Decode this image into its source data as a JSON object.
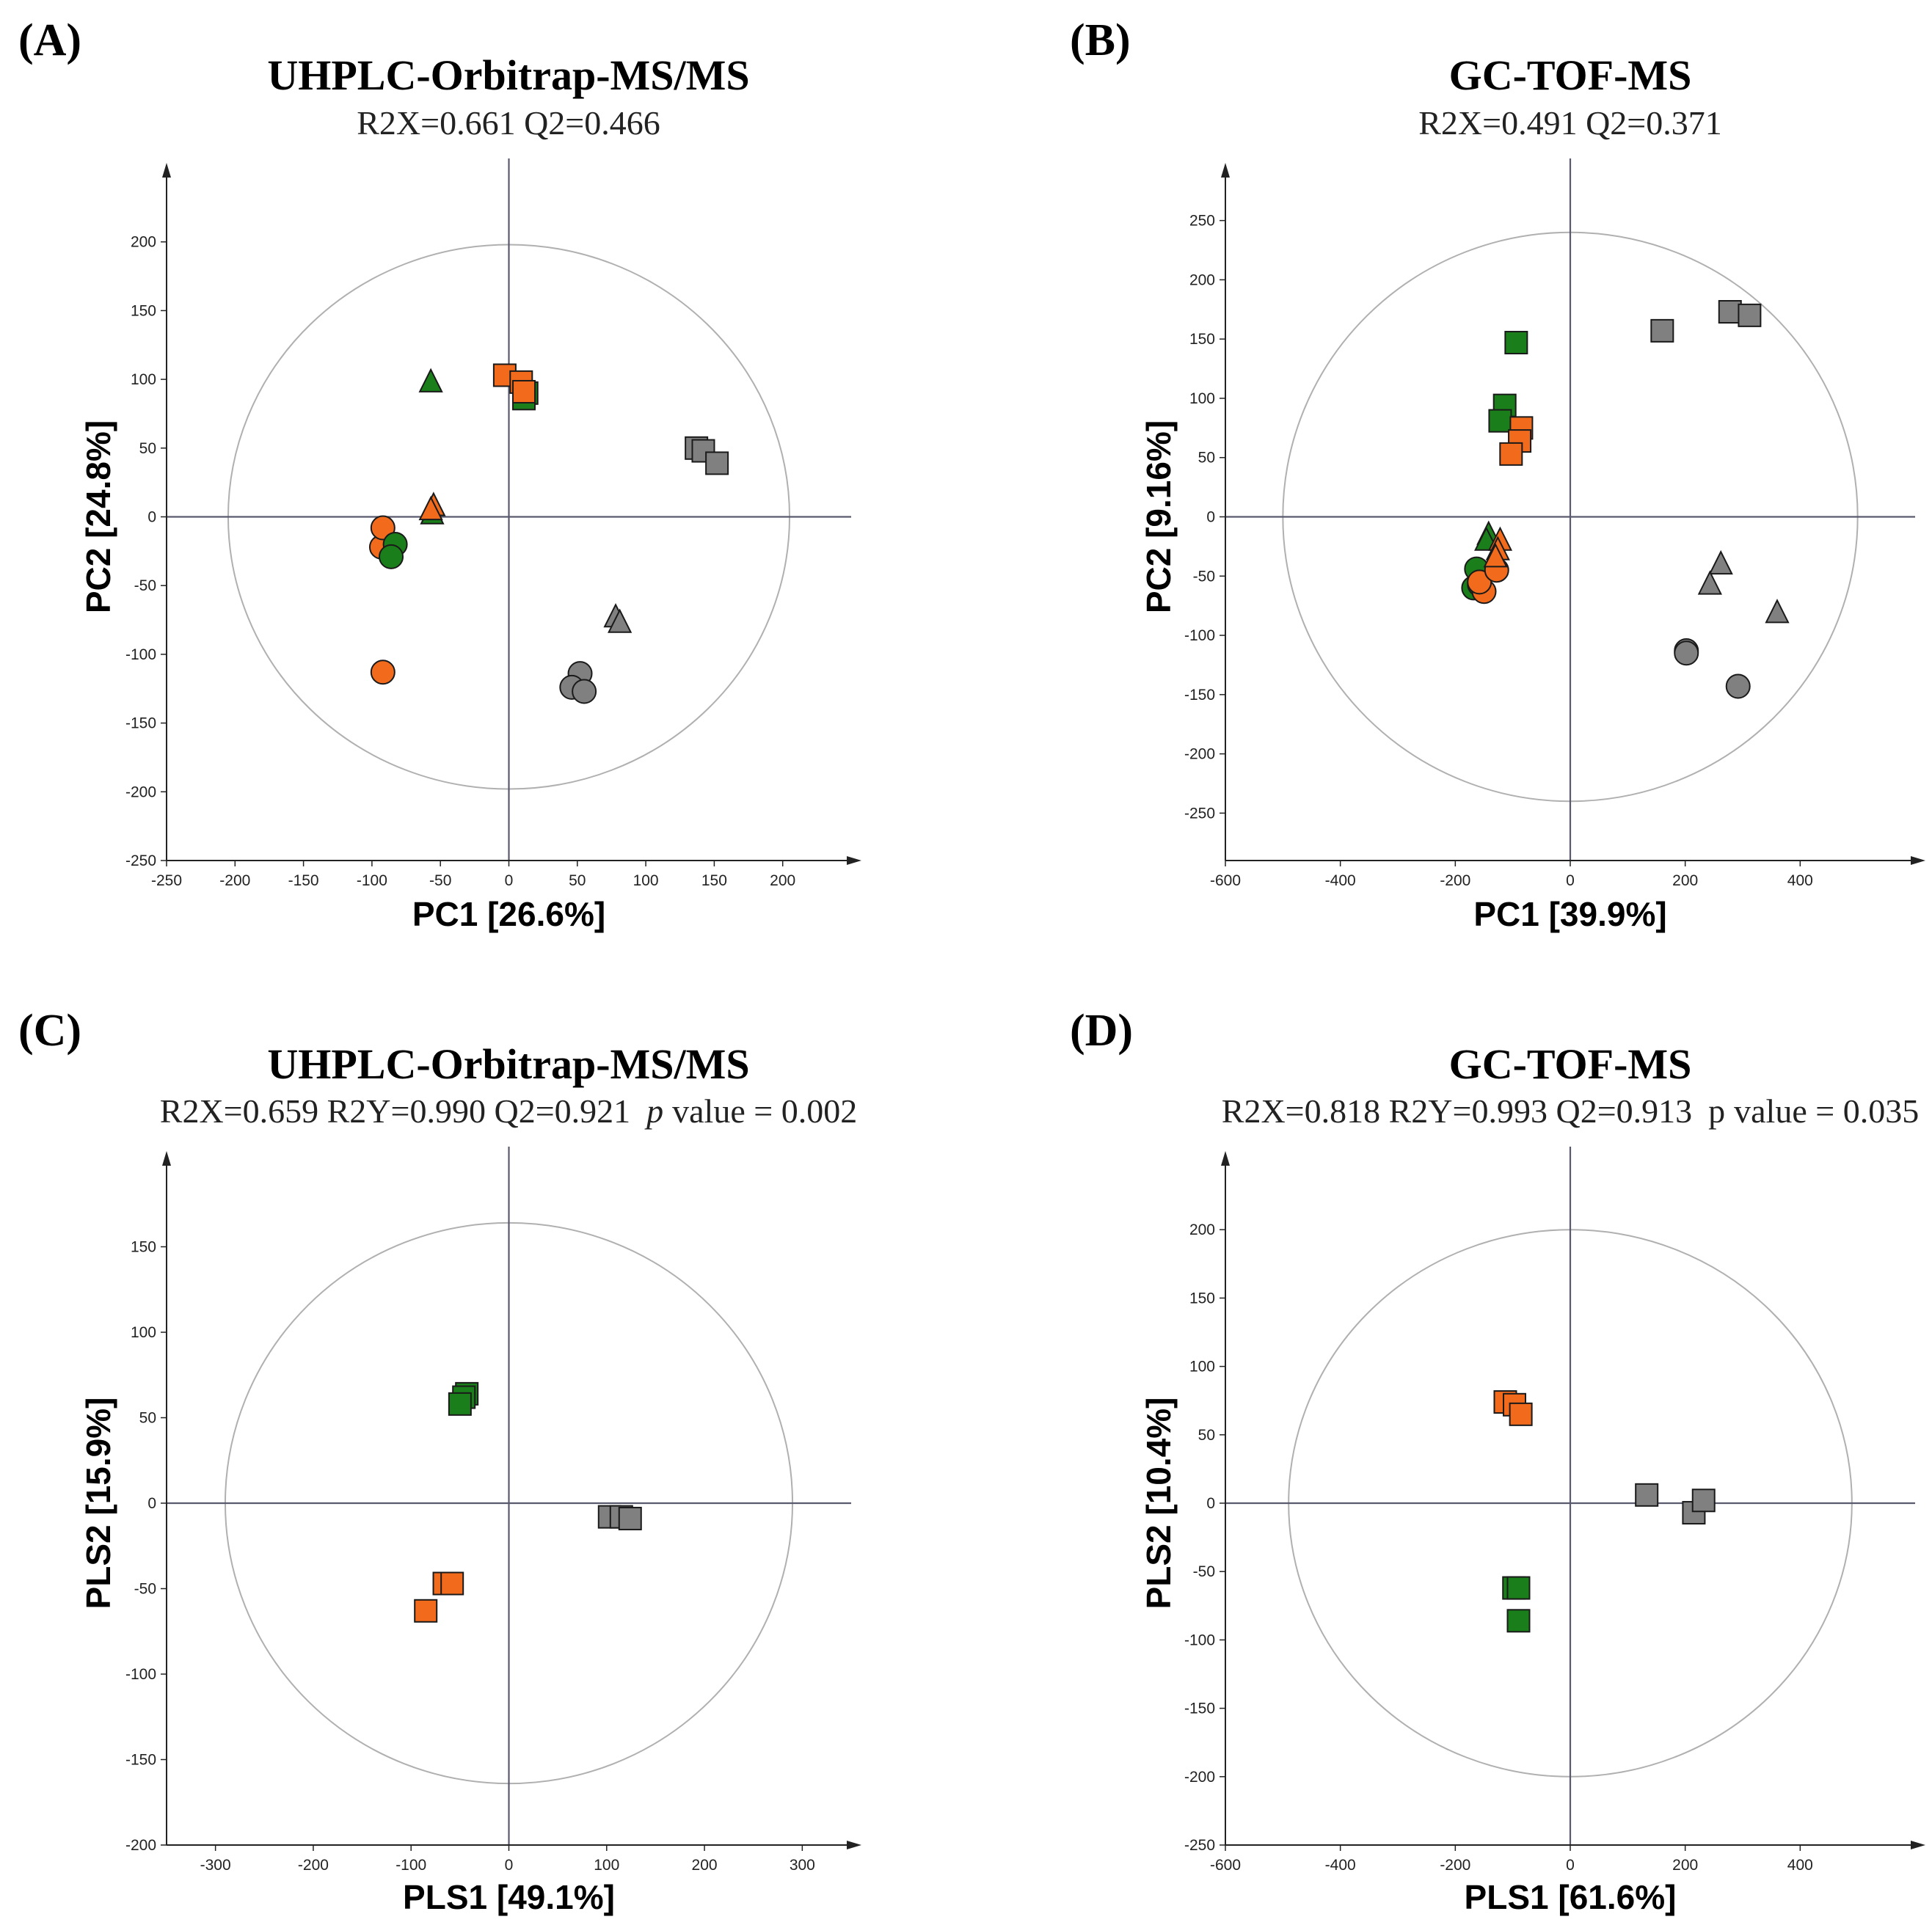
{
  "chart_data": [
    {
      "type": "scatter",
      "label": "(A)",
      "title": "UHPLC-Orbitrap-MS/MS",
      "subtitle": "R2X=0.661 Q2=0.466",
      "xlabel": "PC1 [26.6%]",
      "ylabel": "PC2 [24.8%]",
      "xlim": [
        -250,
        250
      ],
      "ylim": [
        -250,
        250
      ],
      "xticks": [
        -250,
        -200,
        -150,
        -100,
        -50,
        0,
        50,
        100,
        150,
        200
      ],
      "yticks": [
        -250,
        -200,
        -150,
        -100,
        -50,
        0,
        50,
        100,
        150,
        200
      ],
      "ellipse": {
        "rx": 205,
        "ry": 198
      },
      "series": [
        {
          "name": "orange-circle",
          "color": "#f26b1d",
          "shape": "circle",
          "points": [
            [
              -92,
              -113
            ],
            [
              -93,
              -22
            ],
            [
              -92,
              -8
            ]
          ]
        },
        {
          "name": "green-circle",
          "color": "#1a7e1a",
          "shape": "circle",
          "points": [
            [
              -83,
              -20
            ],
            [
              -86,
              -29
            ]
          ]
        },
        {
          "name": "grey-circle",
          "color": "#808080",
          "shape": "circle",
          "points": [
            [
              52,
              -114
            ],
            [
              46,
              -124
            ],
            [
              55,
              -127
            ]
          ]
        },
        {
          "name": "green-triangle",
          "color": "#1a7e1a",
          "shape": "triangle",
          "points": [
            [
              -57,
              98
            ],
            [
              -56,
              2
            ]
          ]
        },
        {
          "name": "orange-triangle",
          "color": "#f26b1d",
          "shape": "triangle",
          "points": [
            [
              -55,
              8
            ],
            [
              -57,
              5
            ]
          ]
        },
        {
          "name": "grey-triangle",
          "color": "#808080",
          "shape": "triangle",
          "points": [
            [
              78,
              -73
            ],
            [
              81,
              -77
            ]
          ]
        },
        {
          "name": "green-square",
          "color": "#1a7e1a",
          "shape": "square",
          "points": [
            [
              13,
              90
            ],
            [
              11,
              86
            ]
          ]
        },
        {
          "name": "orange-square",
          "color": "#f26b1d",
          "shape": "square",
          "points": [
            [
              -3,
              103
            ],
            [
              9,
              98
            ],
            [
              11,
              91
            ]
          ]
        },
        {
          "name": "grey-square",
          "color": "#808080",
          "shape": "square",
          "points": [
            [
              137,
              50
            ],
            [
              142,
              48
            ],
            [
              152,
              39
            ]
          ]
        }
      ]
    },
    {
      "type": "scatter",
      "label": "(B)",
      "title": "GC-TOF-MS",
      "subtitle": "R2X=0.491 Q2=0.371",
      "xlabel": "PC1 [39.9%]",
      "ylabel": "PC2 [9.16%]",
      "xlim": [
        -600,
        600
      ],
      "ylim": [
        -290,
        290
      ],
      "xticks": [
        -600,
        -400,
        -200,
        0,
        200,
        400
      ],
      "yticks": [
        -250,
        -200,
        -150,
        -100,
        -50,
        0,
        50,
        100,
        150,
        200,
        250
      ],
      "ellipse": {
        "rx": 500,
        "ry": 240
      },
      "series": [
        {
          "name": "green-circle",
          "color": "#1a7e1a",
          "shape": "circle",
          "points": [
            [
              -163,
              -44
            ],
            [
              -168,
              -60
            ],
            [
              -158,
              -57
            ]
          ]
        },
        {
          "name": "orange-circle",
          "color": "#f26b1d",
          "shape": "circle",
          "points": [
            [
              -150,
              -63
            ],
            [
              -158,
              -55
            ],
            [
              -128,
              -45
            ]
          ]
        },
        {
          "name": "grey-circle",
          "color": "#808080",
          "shape": "circle",
          "points": [
            [
              202,
              -113
            ],
            [
              202,
              -115
            ],
            [
              292,
              -143
            ]
          ]
        },
        {
          "name": "green-triangle",
          "color": "#1a7e1a",
          "shape": "triangle",
          "points": [
            [
              -142,
              -15
            ],
            [
              -146,
              -20
            ]
          ]
        },
        {
          "name": "orange-triangle",
          "color": "#f26b1d",
          "shape": "triangle",
          "points": [
            [
              -122,
              -20
            ],
            [
              -126,
              -28
            ],
            [
              -130,
              -34
            ]
          ]
        },
        {
          "name": "grey-triangle",
          "color": "#808080",
          "shape": "triangle",
          "points": [
            [
              262,
              -40
            ],
            [
              243,
              -57
            ],
            [
              360,
              -81
            ]
          ]
        },
        {
          "name": "green-square",
          "color": "#1a7e1a",
          "shape": "square",
          "points": [
            [
              -94,
              147
            ],
            [
              -114,
              94
            ],
            [
              -122,
              81
            ]
          ]
        },
        {
          "name": "orange-square",
          "color": "#f26b1d",
          "shape": "square",
          "points": [
            [
              -85,
              75
            ],
            [
              -88,
              64
            ],
            [
              -103,
              53
            ]
          ]
        },
        {
          "name": "grey-square",
          "color": "#808080",
          "shape": "square",
          "points": [
            [
              160,
              157
            ],
            [
              278,
              173
            ],
            [
              312,
              170
            ]
          ]
        }
      ]
    },
    {
      "type": "scatter",
      "label": "(C)",
      "title": "UHPLC-Orbitrap-MS/MS",
      "subtitle_prefix": "R2X=0.659 R2Y=0.990 Q2=0.921",
      "subtitle_p": "p",
      "subtitle_suffix": "value = 0.002",
      "xlabel": "PLS1 [49.1%]",
      "ylabel": "PLS2 [15.9%]",
      "xlim": [
        -350,
        350
      ],
      "ylim": [
        -200,
        200
      ],
      "xticks": [
        -300,
        -200,
        -100,
        0,
        100,
        200,
        300
      ],
      "yticks": [
        -200,
        -150,
        -100,
        -50,
        0,
        50,
        100,
        150
      ],
      "ellipse": {
        "rx": 290,
        "ry": 164
      },
      "series": [
        {
          "name": "green-square",
          "color": "#1a7e1a",
          "shape": "square",
          "points": [
            [
              -43,
              64
            ],
            [
              -46,
              62
            ],
            [
              -50,
              58
            ]
          ]
        },
        {
          "name": "orange-square",
          "color": "#f26b1d",
          "shape": "square",
          "points": [
            [
              -85,
              -63
            ],
            [
              -66,
              -47
            ],
            [
              -58,
              -47
            ]
          ]
        },
        {
          "name": "grey-square",
          "color": "#808080",
          "shape": "square",
          "points": [
            [
              103,
              -8
            ],
            [
              115,
              -8
            ],
            [
              124,
              -9
            ]
          ]
        }
      ]
    },
    {
      "type": "scatter",
      "label": "(D)",
      "title": "GC-TOF-MS",
      "subtitle_prefix": "R2X=0.818 R2Y=0.993 Q2=0.913",
      "subtitle_p": "p",
      "subtitle_suffix": "value = 0.035",
      "subtitle_p_italic": false,
      "xlabel": "PLS1 [61.6%]",
      "ylabel": "PLS2 [10.4%]",
      "xlim": [
        -600,
        600
      ],
      "ylim": [
        -250,
        250
      ],
      "xticks": [
        -600,
        -400,
        -200,
        0,
        200,
        400
      ],
      "yticks": [
        -250,
        -200,
        -150,
        -100,
        -50,
        0,
        50,
        100,
        150,
        200
      ],
      "ellipse": {
        "rx": 490,
        "ry": 200
      },
      "series": [
        {
          "name": "orange-square",
          "color": "#f26b1d",
          "shape": "square",
          "points": [
            [
              -113,
              74
            ],
            [
              -97,
              72
            ],
            [
              -86,
              65
            ]
          ]
        },
        {
          "name": "green-square",
          "color": "#1a7e1a",
          "shape": "square",
          "points": [
            [
              -98,
              -62
            ],
            [
              -90,
              -62
            ],
            [
              -90,
              -86
            ]
          ]
        },
        {
          "name": "grey-square",
          "color": "#808080",
          "shape": "square",
          "points": [
            [
              133,
              6
            ],
            [
              215,
              -7
            ],
            [
              232,
              2
            ]
          ]
        }
      ]
    }
  ]
}
